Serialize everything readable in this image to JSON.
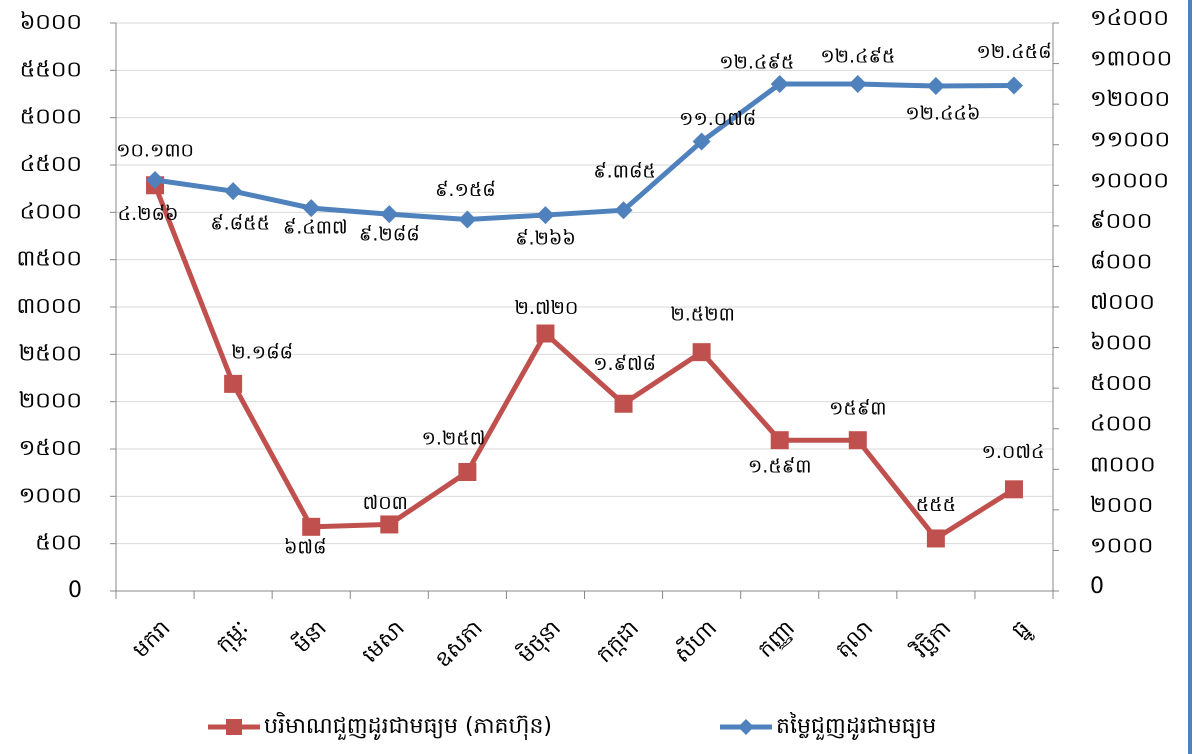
{
  "chart_data": {
    "type": "line",
    "categories": [
      "មករា",
      "កុម្ភៈ",
      "មីនា",
      "មេសា",
      "ឧសភា",
      "មិថុនា",
      "កក្កដា",
      "សីហា",
      "កញ្ញា",
      "តុលា",
      "វិច្ឆិកា",
      "ធ្នូ"
    ],
    "series": [
      {
        "name": "បរិមាណជួញដូរជាមធ្យម (ភាគហ៊ុន)",
        "color": "#c0504d",
        "marker": "square",
        "axis": "y",
        "values": [
          4286,
          2188,
          678,
          703,
          1257,
          2720,
          1978,
          2523,
          1593,
          1593,
          555,
          1074
        ],
        "value_labels": [
          "៤.២៨៦",
          "២.១៨៨",
          "៦៧៨",
          "៧០៣",
          "១.២៥៧",
          "២.៧២០",
          "១.៩៧៨",
          "២.៥២៣",
          "១.៥៩៣",
          "១៥៩៣",
          "៥៥៥",
          "១.០៧៤"
        ]
      },
      {
        "name": "តម្លៃជួញដូរជាមធ្យម",
        "color": "#4f81bd",
        "marker": "diamond",
        "axis": "y2",
        "values": [
          10130,
          9855,
          9437,
          9288,
          9158,
          9266,
          9385,
          11078,
          12495,
          12495,
          12446,
          12458
        ],
        "value_labels": [
          "១០.១៣០",
          "៩.៨៥៥",
          "៩.៤៣៧",
          "៩.២៨៨",
          "៩.១៥៨",
          "៩.២៦៦",
          "៩.៣៨៥",
          "១១.០៧៨",
          "១២.៤៩៥",
          "១២.៤៩៥",
          "១២.៤៤៦",
          "១២.៤៥៨"
        ]
      }
    ],
    "ylim": [
      0,
      6000
    ],
    "yticks": [
      0,
      {
        "value": 500,
        "label": "៥០០"
      },
      {
        "value": 1000,
        "label": "១០០០"
      },
      {
        "value": 1500,
        "label": "១៥០០"
      },
      {
        "value": 2000,
        "label": "២០០០"
      },
      {
        "value": 2500,
        "label": "២៥០០"
      },
      {
        "value": 3000,
        "label": "៣០០០"
      },
      {
        "value": 3500,
        "label": "៣៥០០"
      },
      {
        "value": 4000,
        "label": "៤០០០"
      },
      {
        "value": 4500,
        "label": "៤៥០០"
      },
      {
        "value": 5000,
        "label": "៥០០០"
      },
      {
        "value": 5500,
        "label": "៥៥០០"
      },
      {
        "value": 6000,
        "label": "៦០០០"
      }
    ],
    "y2lim": [
      0,
      14000
    ],
    "y2ticks": [
      0,
      {
        "value": 1000,
        "label": "១០០០"
      },
      {
        "value": 2000,
        "label": "២០០០"
      },
      {
        "value": 3000,
        "label": "៣០០០"
      },
      {
        "value": 4000,
        "label": "៤០០០"
      },
      {
        "value": 5000,
        "label": "៥០០០"
      },
      {
        "value": 6000,
        "label": "៦០០០"
      },
      {
        "value": 7000,
        "label": "៧០០០"
      },
      {
        "value": 8000,
        "label": "៨០០០"
      },
      {
        "value": 9000,
        "label": "៩០០០"
      },
      {
        "value": 10000,
        "label": "១០០០០"
      },
      {
        "value": 11000,
        "label": "១១០០០"
      },
      {
        "value": 12000,
        "label": "១២០០០"
      },
      {
        "value": 13000,
        "label": "១៣០០០"
      },
      {
        "value": 14000,
        "label": "១៤០០០"
      }
    ],
    "grid": true,
    "legend": "bottom"
  }
}
